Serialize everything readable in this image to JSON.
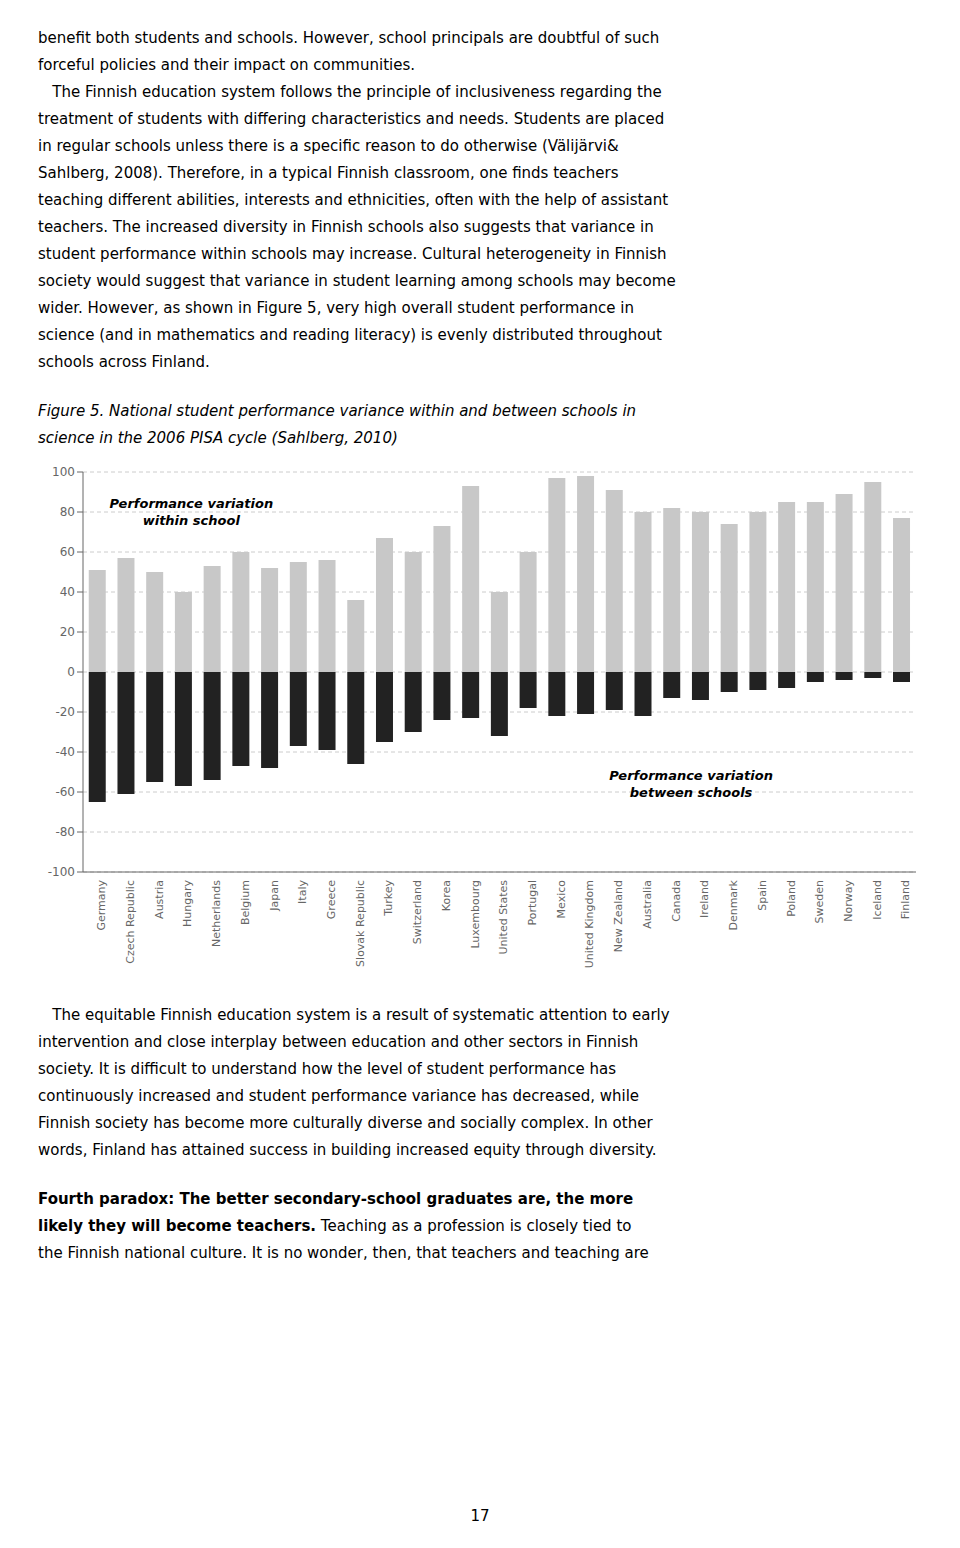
{
  "chart_data": {
    "type": "bar",
    "title": "Figure 5. National student performance variance within and between schools in\nscience in the 2006 PISA cycle (Sahlberg, 2010)",
    "categories": [
      "Germany",
      "Czech Republic",
      "Austria",
      "Hungary",
      "Netherlands",
      "Belgium",
      "Japan",
      "Italy",
      "Greece",
      "Slovak Republic",
      "Turkey",
      "Switzerland",
      "Korea",
      "Luxembourg",
      "United States",
      "Portugal",
      "Mexico",
      "United Kingdom",
      "New Zealand",
      "Australia",
      "Canada",
      "Ireland",
      "Denmark",
      "Spain",
      "Poland",
      "Sweden",
      "Norway",
      "Iceland",
      "Finland"
    ],
    "series": [
      {
        "color": "#c8c8c8",
        "values": [
          51,
          57,
          50,
          40,
          53,
          60,
          52,
          55,
          56,
          36,
          67,
          60,
          73,
          93,
          40,
          60,
          97,
          98,
          91,
          80,
          82,
          80,
          74,
          80,
          85,
          85,
          89,
          95,
          77
        ]
      },
      {
        "color": "#222222",
        "values": [
          -65,
          -61,
          -55,
          -57,
          -54,
          -47,
          -48,
          -37,
          -39,
          -46,
          -35,
          -30,
          -24,
          -23,
          -32,
          -18,
          -22,
          -21,
          -19,
          -22,
          -13,
          -14,
          -10,
          -9,
          -8,
          -5,
          -4,
          -3,
          -5
        ]
      }
    ],
    "stacked": true,
    "ylim": [
      -100,
      100
    ],
    "yticks": [
      -100,
      -80,
      -60,
      -40,
      -20,
      0,
      20,
      40,
      60,
      80,
      100
    ],
    "grid": true,
    "annotations": [
      "Performance variation\nwithin school",
      "Performance variation\nbetween schools"
    ]
  },
  "page": {
    "paragraphs_above": "benefit both students and schools. However, school principals are doubtful of such\nforceful policies and their impact on communities.\n   The Finnish education system follows the principle of inclusiveness regarding the\ntreatment of students with differing characteristics and needs. Students are placed\nin regular schools unless there is a specific reason to do otherwise (Välijärvi&\nSahlberg, 2008). Therefore, in a typical Finnish classroom, one finds teachers\nteaching different abilities, interests and ethnicities, often with the help of assistant\nteachers. The increased diversity in Finnish schools also suggests that variance in\nstudent performance within schools may increase. Cultural heterogeneity in Finnish\nsociety would suggest that variance in student learning among schools may become\nwider. However, as shown in Figure 5, very high overall student performance in\nscience (and in mathematics and reading literacy) is evenly distributed throughout\nschools across Finland.",
    "paragraphs_below": "   The equitable Finnish education system is a result of systematic attention to early\nintervention and close interplay between education and other sectors in Finnish\nsociety. It is difficult to understand how the level of student performance has\ncontinuously increased and student performance variance has decreased, while\nFinnish society has become more culturally diverse and socially complex. In other\nwords, Finland has attained success in building increased equity through diversity.",
    "bold_lead": "Fourth paradox: The better secondary-school graduates are, the more\nlikely they will become teachers.",
    "rest": " Teaching as a profession is closely tied to\nthe Finnish national culture. It is no wonder, then, that teachers and teaching are",
    "page_number": "17"
  }
}
